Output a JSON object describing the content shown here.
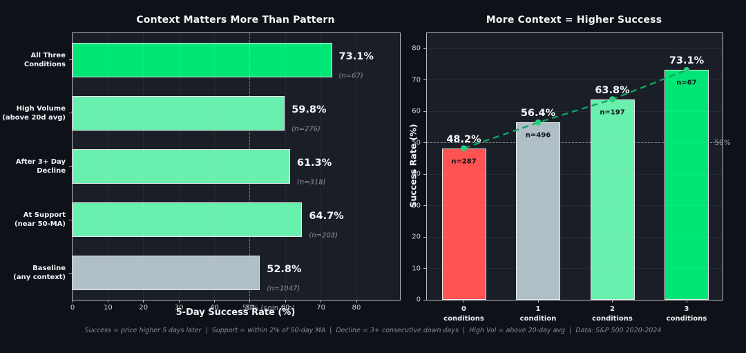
{
  "figure": {
    "background": "#0e1117",
    "panel_background": "#1a1e27",
    "footer": "Success = price higher 5 days later  |  Support = within 2% of 50-day MA  |  Decline = 3+ consecutive down days  |  High Vol = above 20-day avg  |  Data: S&P 500 2020-2024",
    "colors": {
      "bright_green": "#00e676",
      "light_green": "#69f0ae",
      "neutral_gray": "#b0bec5",
      "red": "#ff5252",
      "trend_green": "#12a45e",
      "trend_marker_green": "#2bcd7e",
      "reference_gray": "#9aa0a8",
      "spine_gray": "#b6bac1"
    }
  },
  "chart_data": [
    {
      "type": "bar",
      "orientation": "horizontal",
      "title": "Context Matters More Than Pattern",
      "xlabel": "5-Day Success Rate (%)",
      "categories": [
        "All Three\nConditions",
        "High Volume\n(above 20d avg)",
        "After 3+ Day\nDecline",
        "At Support\n(near 50-MA)",
        "Baseline\n(any context)"
      ],
      "values": [
        73.1,
        59.8,
        61.3,
        64.7,
        52.8
      ],
      "value_labels": [
        "73.1%",
        "59.8%",
        "61.3%",
        "64.7%",
        "52.8%"
      ],
      "counts": [
        67,
        276,
        318,
        203,
        1047
      ],
      "count_labels": [
        "(n=67)",
        "(n=276)",
        "(n=318)",
        "(n=203)",
        "(n=1047)"
      ],
      "bar_colors": [
        "#00e676",
        "#69f0ae",
        "#69f0ae",
        "#69f0ae",
        "#b0bec5"
      ],
      "xlim": [
        0,
        92.3
      ],
      "xticks": [
        0,
        10,
        20,
        30,
        40,
        50,
        60,
        70,
        80
      ],
      "xtick_labels": [
        "0",
        "10",
        "20",
        "30",
        "40",
        "50",
        "60",
        "70",
        "80"
      ],
      "grid": true,
      "legend": "none",
      "reference_line": {
        "value": 50,
        "label": "50% (coin flip)"
      }
    },
    {
      "type": "bar",
      "orientation": "vertical",
      "title": "More Context = Higher Success",
      "ylabel": "Success Rate (%)",
      "categories": [
        "0\nconditions",
        "1\ncondition",
        "2\nconditions",
        "3\nconditions"
      ],
      "values": [
        48.2,
        56.4,
        63.8,
        73.1
      ],
      "value_labels": [
        "48.2%",
        "56.4%",
        "63.8%",
        "73.1%"
      ],
      "counts": [
        287,
        496,
        197,
        67
      ],
      "count_labels": [
        "n=287",
        "n=496",
        "n=197",
        "n=67"
      ],
      "bar_colors": [
        "#ff5252",
        "#b0bec5",
        "#69f0ae",
        "#00e676"
      ],
      "ylim": [
        0,
        84.8
      ],
      "yticks": [
        0,
        10,
        20,
        30,
        40,
        50,
        60,
        70,
        80
      ],
      "ytick_labels": [
        "0",
        "10",
        "20",
        "30",
        "40",
        "50",
        "60",
        "70",
        "80"
      ],
      "grid": true,
      "legend": "none",
      "reference_line": {
        "value": 50,
        "label": "50%"
      },
      "trend_line": true
    }
  ]
}
